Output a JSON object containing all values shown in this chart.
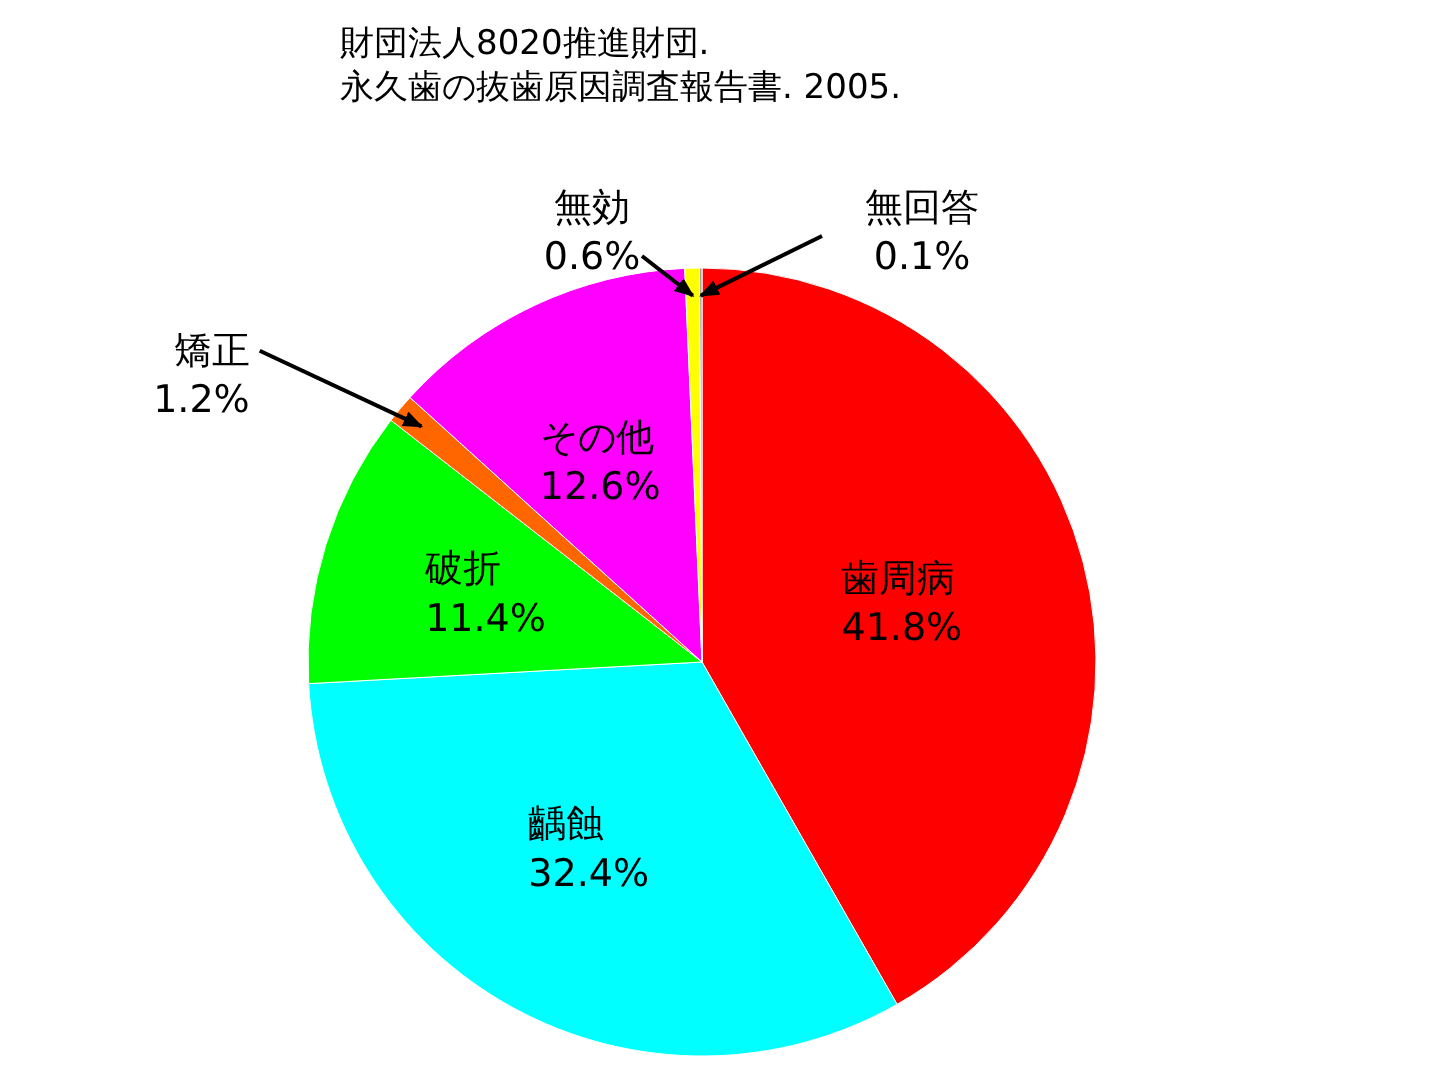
{
  "chart_data": {
    "type": "pie",
    "title": "財団法人8020推進財団.\n永久歯の抜歯原因調査報告書. 2005.",
    "categories": [
      "歯周病",
      "齲蝕",
      "破折",
      "矯正",
      "その他",
      "無効",
      "無回答"
    ],
    "values": [
      41.8,
      32.4,
      11.4,
      1.2,
      12.6,
      0.6,
      0.1
    ],
    "colors": [
      "#ff0000",
      "#00ffff",
      "#00ff00",
      "#ff6600",
      "#ff00ff",
      "#ffff00",
      "#999999"
    ],
    "value_labels": [
      "41.8%",
      "32.4%",
      "11.4%",
      "1.2%",
      "12.6%",
      "0.6%",
      "0.1%"
    ]
  }
}
